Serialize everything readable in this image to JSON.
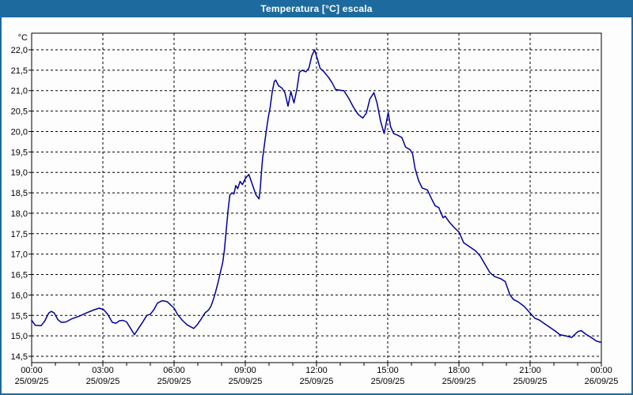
{
  "window": {
    "title": "Temperatura [°C] escala",
    "title_bar_color": "#1d6a9e",
    "border_color": "#1d6a9e",
    "plot_background": "#fdfdfd"
  },
  "chart_data": {
    "type": "line",
    "title": "Temperatura [°C] escala",
    "y_unit_label": "°C",
    "ylabel": "Temperatura",
    "xlabel": "",
    "ylim": [
      14.5,
      22.0
    ],
    "y_step": 0.5,
    "y_tick_labels": [
      "22,0",
      "21,5",
      "21,0",
      "20,5",
      "20,0",
      "19,5",
      "19,0",
      "18,5",
      "18,0",
      "17,5",
      "17,0",
      "16,5",
      "16,0",
      "15,5",
      "15,0",
      "14,5"
    ],
    "x_range_hours": [
      0,
      24
    ],
    "x_major_step_hours": 3,
    "x_minor_step_hours": 1,
    "x_ticks": [
      {
        "time": "00:00",
        "date": "25/09/25"
      },
      {
        "time": "03:00",
        "date": "25/09/25"
      },
      {
        "time": "06:00",
        "date": "25/09/25"
      },
      {
        "time": "09:00",
        "date": "25/09/25"
      },
      {
        "time": "12:00",
        "date": "25/09/25"
      },
      {
        "time": "15:00",
        "date": "25/09/25"
      },
      {
        "time": "18:00",
        "date": "25/09/25"
      },
      {
        "time": "21:00",
        "date": "25/09/25"
      },
      {
        "time": "00:00",
        "date": "26/09/25"
      }
    ],
    "grid": "dashed",
    "legend": "none",
    "line_color": "#0000a0",
    "axis_color": "#000000",
    "series": [
      {
        "name": "Temperatura",
        "points": [
          [
            0.0,
            15.38
          ],
          [
            0.15,
            15.26
          ],
          [
            0.4,
            15.25
          ],
          [
            0.55,
            15.36
          ],
          [
            0.72,
            15.56
          ],
          [
            0.83,
            15.6
          ],
          [
            0.95,
            15.56
          ],
          [
            1.1,
            15.4
          ],
          [
            1.25,
            15.33
          ],
          [
            1.45,
            15.34
          ],
          [
            1.7,
            15.42
          ],
          [
            2.0,
            15.48
          ],
          [
            2.3,
            15.56
          ],
          [
            2.6,
            15.63
          ],
          [
            2.85,
            15.68
          ],
          [
            3.05,
            15.63
          ],
          [
            3.2,
            15.53
          ],
          [
            3.4,
            15.33
          ],
          [
            3.55,
            15.31
          ],
          [
            3.7,
            15.37
          ],
          [
            3.85,
            15.38
          ],
          [
            4.0,
            15.34
          ],
          [
            4.15,
            15.2
          ],
          [
            4.33,
            15.03
          ],
          [
            4.5,
            15.18
          ],
          [
            4.67,
            15.33
          ],
          [
            4.85,
            15.5
          ],
          [
            5.0,
            15.53
          ],
          [
            5.15,
            15.64
          ],
          [
            5.3,
            15.8
          ],
          [
            5.5,
            15.86
          ],
          [
            5.7,
            15.84
          ],
          [
            5.85,
            15.76
          ],
          [
            6.0,
            15.68
          ],
          [
            6.15,
            15.52
          ],
          [
            6.35,
            15.38
          ],
          [
            6.55,
            15.27
          ],
          [
            6.83,
            15.18
          ],
          [
            7.0,
            15.29
          ],
          [
            7.15,
            15.42
          ],
          [
            7.3,
            15.56
          ],
          [
            7.45,
            15.63
          ],
          [
            7.55,
            15.72
          ],
          [
            7.65,
            15.88
          ],
          [
            7.75,
            16.08
          ],
          [
            7.85,
            16.3
          ],
          [
            7.95,
            16.55
          ],
          [
            8.05,
            16.8
          ],
          [
            8.12,
            17.1
          ],
          [
            8.2,
            17.6
          ],
          [
            8.28,
            18.1
          ],
          [
            8.35,
            18.45
          ],
          [
            8.45,
            18.5
          ],
          [
            8.52,
            18.47
          ],
          [
            8.6,
            18.68
          ],
          [
            8.68,
            18.6
          ],
          [
            8.78,
            18.78
          ],
          [
            8.88,
            18.7
          ],
          [
            9.0,
            18.85
          ],
          [
            9.15,
            18.95
          ],
          [
            9.3,
            18.7
          ],
          [
            9.45,
            18.45
          ],
          [
            9.58,
            18.35
          ],
          [
            9.63,
            18.6
          ],
          [
            9.68,
            19.0
          ],
          [
            9.73,
            19.35
          ],
          [
            9.8,
            19.65
          ],
          [
            9.88,
            20.0
          ],
          [
            9.97,
            20.35
          ],
          [
            10.05,
            20.6
          ],
          [
            10.13,
            20.95
          ],
          [
            10.22,
            21.22
          ],
          [
            10.28,
            21.26
          ],
          [
            10.4,
            21.12
          ],
          [
            10.55,
            21.06
          ],
          [
            10.67,
            20.95
          ],
          [
            10.8,
            20.62
          ],
          [
            10.92,
            20.98
          ],
          [
            11.05,
            20.7
          ],
          [
            11.18,
            21.05
          ],
          [
            11.28,
            21.45
          ],
          [
            11.4,
            21.5
          ],
          [
            11.55,
            21.46
          ],
          [
            11.68,
            21.55
          ],
          [
            11.8,
            21.85
          ],
          [
            11.92,
            22.0
          ],
          [
            12.05,
            21.75
          ],
          [
            12.15,
            21.55
          ],
          [
            12.3,
            21.47
          ],
          [
            12.5,
            21.33
          ],
          [
            12.67,
            21.18
          ],
          [
            12.8,
            21.03
          ],
          [
            13.0,
            21.01
          ],
          [
            13.15,
            21.0
          ],
          [
            13.35,
            20.82
          ],
          [
            13.55,
            20.6
          ],
          [
            13.75,
            20.42
          ],
          [
            13.95,
            20.33
          ],
          [
            14.1,
            20.45
          ],
          [
            14.25,
            20.8
          ],
          [
            14.42,
            20.95
          ],
          [
            14.55,
            20.7
          ],
          [
            14.7,
            20.25
          ],
          [
            14.85,
            19.95
          ],
          [
            14.95,
            20.25
          ],
          [
            15.02,
            20.47
          ],
          [
            15.12,
            20.12
          ],
          [
            15.25,
            19.95
          ],
          [
            15.45,
            19.9
          ],
          [
            15.6,
            19.85
          ],
          [
            15.75,
            19.62
          ],
          [
            15.95,
            19.55
          ],
          [
            16.05,
            19.45
          ],
          [
            16.15,
            19.1
          ],
          [
            16.3,
            18.8
          ],
          [
            16.45,
            18.62
          ],
          [
            16.67,
            18.57
          ],
          [
            16.85,
            18.35
          ],
          [
            17.0,
            18.18
          ],
          [
            17.15,
            18.14
          ],
          [
            17.25,
            18.0
          ],
          [
            17.33,
            17.89
          ],
          [
            17.42,
            17.93
          ],
          [
            17.6,
            17.78
          ],
          [
            17.8,
            17.65
          ],
          [
            18.0,
            17.54
          ],
          [
            18.2,
            17.28
          ],
          [
            18.5,
            17.16
          ],
          [
            18.7,
            17.08
          ],
          [
            18.9,
            16.95
          ],
          [
            19.1,
            16.75
          ],
          [
            19.3,
            16.55
          ],
          [
            19.5,
            16.45
          ],
          [
            19.75,
            16.4
          ],
          [
            19.95,
            16.33
          ],
          [
            20.15,
            16.0
          ],
          [
            20.3,
            15.89
          ],
          [
            20.5,
            15.83
          ],
          [
            20.75,
            15.72
          ],
          [
            21.0,
            15.56
          ],
          [
            21.2,
            15.43
          ],
          [
            21.38,
            15.39
          ],
          [
            21.6,
            15.3
          ],
          [
            21.85,
            15.2
          ],
          [
            22.05,
            15.12
          ],
          [
            22.25,
            15.03
          ],
          [
            22.5,
            15.0
          ],
          [
            22.75,
            14.96
          ],
          [
            23.0,
            15.1
          ],
          [
            23.15,
            15.13
          ],
          [
            23.35,
            15.04
          ],
          [
            23.6,
            14.95
          ],
          [
            23.8,
            14.87
          ],
          [
            24.0,
            14.84
          ]
        ]
      }
    ]
  }
}
